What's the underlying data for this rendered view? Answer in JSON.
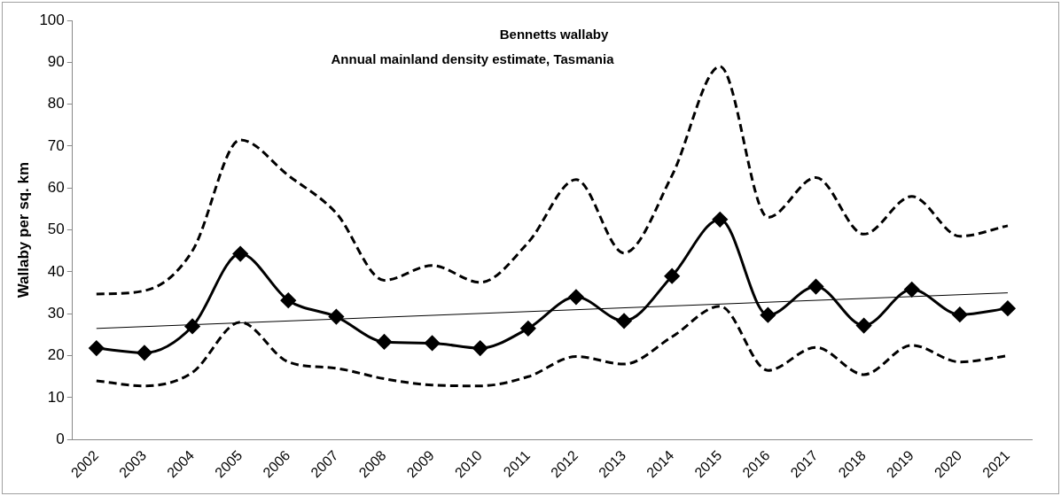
{
  "chart_data": {
    "type": "line",
    "title": "Bennetts wallaby",
    "subtitle": "Annual mainland density estimate, Tasmania",
    "ylabel": "Wallaby per sq. km",
    "categories": [
      "2002",
      "2003",
      "2004",
      "2005",
      "2006",
      "2007",
      "2008",
      "2009",
      "2010",
      "2011",
      "2012",
      "2013",
      "2014",
      "2015",
      "2016",
      "2017",
      "2018",
      "2019",
      "2020",
      "2021"
    ],
    "series": [
      {
        "color": "#000000",
        "marker": "diamond",
        "line_style": "solid",
        "values": [
          21.8,
          20.7,
          27,
          44.3,
          33.2,
          29.3,
          23.3,
          23,
          21.8,
          26.5,
          34,
          28.3,
          39,
          52.5,
          29.7,
          36.5,
          27.2,
          35.8,
          29.8,
          31.3
        ]
      },
      {
        "color": "#000000",
        "marker": "none",
        "line_style": "dashed",
        "values": [
          34.7,
          35.5,
          45,
          71.5,
          63,
          54,
          38,
          41.5,
          37.5,
          47,
          62,
          44.5,
          63,
          89,
          53,
          62.5,
          49,
          58,
          48.5,
          51
        ]
      },
      {
        "color": "#000000",
        "marker": "none",
        "line_style": "dashed",
        "values": [
          14,
          12.8,
          16,
          28,
          18.5,
          17,
          14.5,
          13,
          12.8,
          15,
          19.8,
          18,
          24.5,
          31.8,
          16.5,
          22,
          15.5,
          22.5,
          18.5,
          20
        ]
      },
      {
        "type": "line",
        "color": "#000000",
        "marker": "none",
        "line_style": "solid",
        "values": [
          26.5,
          null,
          null,
          null,
          null,
          null,
          null,
          null,
          null,
          null,
          null,
          null,
          null,
          null,
          null,
          null,
          null,
          null,
          null,
          35
        ]
      }
    ],
    "ylim": [
      0,
      100
    ],
    "yticks": [
      0,
      10,
      20,
      30,
      40,
      50,
      60,
      70,
      80,
      90,
      100
    ],
    "grid": false,
    "legend": false
  }
}
